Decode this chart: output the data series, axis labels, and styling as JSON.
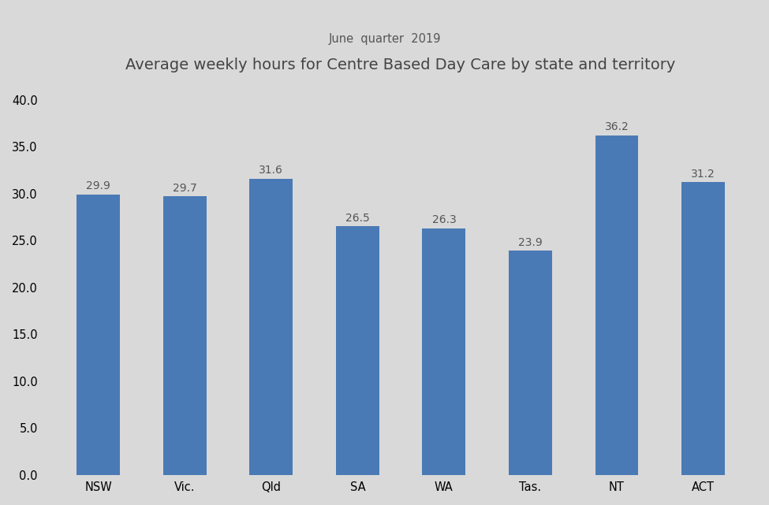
{
  "title": "Average weekly hours for Centre Based Day Care by state and territory",
  "subtitle": "June  quarter  2019",
  "categories": [
    "NSW",
    "Vic.",
    "Qld",
    "SA",
    "WA",
    "Tas.",
    "NT",
    "ACT"
  ],
  "values": [
    29.9,
    29.7,
    31.6,
    26.5,
    26.3,
    23.9,
    36.2,
    31.2
  ],
  "bar_color": "#4a7ab5",
  "background_color": "#d9d9d9",
  "ylim": [
    0,
    40
  ],
  "ytick_step": 5,
  "title_fontsize": 14,
  "subtitle_fontsize": 10.5,
  "label_fontsize": 10,
  "tick_fontsize": 10.5,
  "bar_width": 0.5
}
